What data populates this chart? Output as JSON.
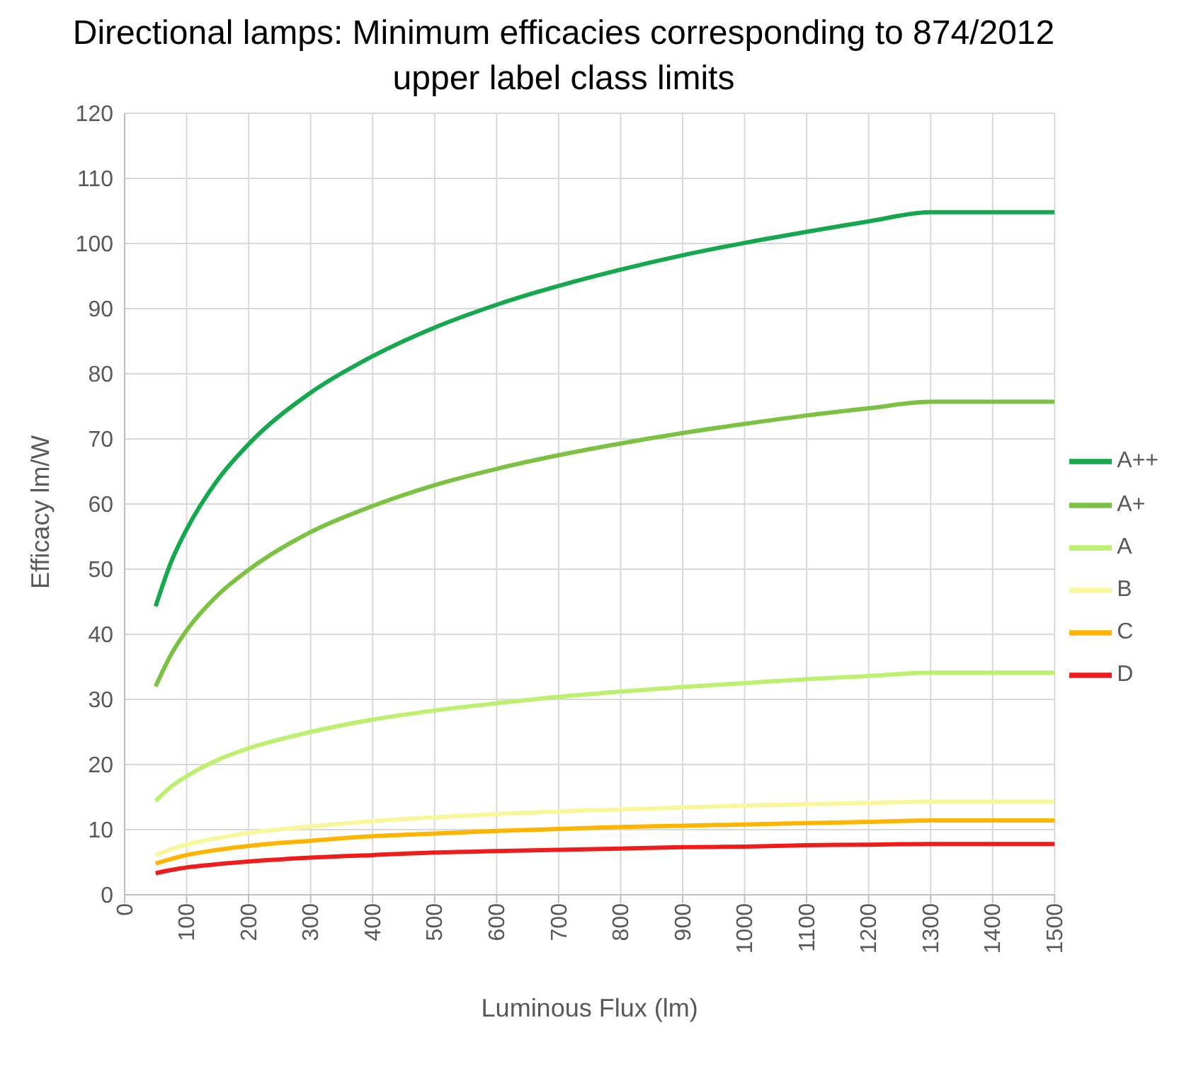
{
  "chart_data": {
    "type": "line",
    "title": "Directional lamps:  Minimum efficacies corresponding to 874/2012 upper label class limits",
    "xlabel": "Luminous Flux (lm)",
    "ylabel": "Efficacy lm/W",
    "x": [
      50,
      75,
      100,
      150,
      200,
      300,
      400,
      500,
      600,
      700,
      800,
      900,
      1000,
      1100,
      1200,
      1300,
      1400,
      1500
    ],
    "series": [
      {
        "name": "A++",
        "color": "#16a84d",
        "values": [
          44.3,
          51.1,
          56.1,
          63.7,
          69.2,
          77.1,
          82.7,
          87.1,
          90.6,
          93.5,
          96.0,
          98.2,
          100.1,
          101.8,
          103.4,
          104.8,
          104.8,
          104.8
        ]
      },
      {
        "name": "A+",
        "color": "#7cc242",
        "values": [
          32.0,
          36.9,
          40.6,
          46.0,
          49.9,
          55.7,
          59.7,
          62.9,
          65.4,
          67.5,
          69.3,
          70.9,
          72.3,
          73.6,
          74.7,
          75.7,
          75.7,
          75.7
        ]
      },
      {
        "name": "A",
        "color": "#bdf06e",
        "values": [
          14.4,
          16.6,
          18.2,
          20.7,
          22.5,
          25.0,
          26.9,
          28.3,
          29.4,
          30.4,
          31.2,
          31.9,
          32.5,
          33.1,
          33.6,
          34.1,
          34.1,
          34.1
        ]
      },
      {
        "name": "B",
        "color": "#f8f79c",
        "values": [
          6.1,
          7.0,
          7.7,
          8.7,
          9.5,
          10.5,
          11.3,
          11.9,
          12.4,
          12.8,
          13.1,
          13.4,
          13.7,
          13.9,
          14.1,
          14.3,
          14.3,
          14.3
        ]
      },
      {
        "name": "C",
        "color": "#ffb400",
        "values": [
          4.8,
          5.5,
          6.1,
          6.9,
          7.5,
          8.3,
          9.0,
          9.4,
          9.8,
          10.1,
          10.4,
          10.6,
          10.8,
          11.0,
          11.2,
          11.4,
          11.4,
          11.4
        ]
      },
      {
        "name": "D",
        "color": "#ee1c1c",
        "values": [
          3.3,
          3.8,
          4.2,
          4.7,
          5.1,
          5.7,
          6.1,
          6.5,
          6.7,
          6.9,
          7.1,
          7.3,
          7.4,
          7.6,
          7.7,
          7.8,
          7.8,
          7.8
        ]
      }
    ],
    "xlim": [
      0,
      1500
    ],
    "xticks": [
      0,
      100,
      200,
      300,
      400,
      500,
      600,
      700,
      800,
      900,
      1000,
      1100,
      1200,
      1300,
      1400,
      1500
    ],
    "ylim": [
      0,
      120
    ],
    "yticks": [
      0,
      10,
      20,
      30,
      40,
      50,
      60,
      70,
      80,
      90,
      100,
      110,
      120
    ],
    "grid": true,
    "legend": "right"
  }
}
